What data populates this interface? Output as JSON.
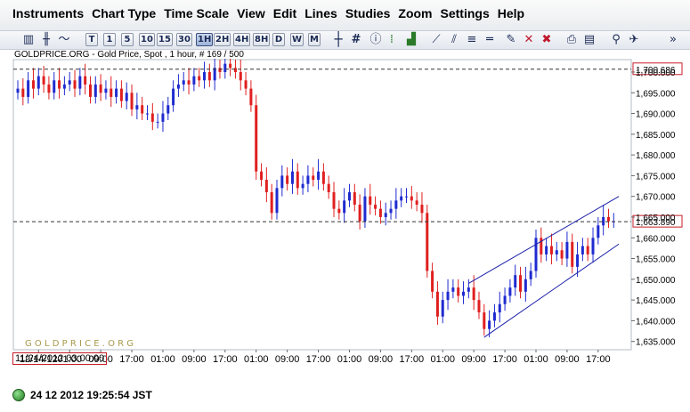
{
  "menu": [
    "Instruments",
    "Chart Type",
    "Time Scale",
    "View",
    "Edit",
    "Lines",
    "Studies",
    "Zoom",
    "Settings",
    "Help"
  ],
  "toolbar": {
    "timeframes": [
      "T",
      "1",
      "5",
      "10",
      "15",
      "30",
      "1H",
      "2H",
      "4H",
      "8H",
      "D",
      "W",
      "M"
    ],
    "selected_timeframe": "1H"
  },
  "subtitle": "GOLDPRICE.ORG - Gold Price, Spot , 1 hour, # 169 / 500",
  "watermark": "G O L D P R I C E . O R G",
  "cursor_date": "11/24/2012 03:00:00",
  "status_time": "24 12 2012 19:25:54 JST",
  "colors": {
    "up": "#1f2bd0",
    "down": "#e01f1f",
    "channel": "#1a1fa8",
    "price_box": "#c81e28"
  },
  "chart_data": {
    "type": "candlestick",
    "title": "",
    "ylim": [
      1633,
      1703
    ],
    "y_ticks": [
      "1,635.000",
      "1,640.000",
      "1,645.000",
      "1,650.000",
      "1,655.000",
      "1,660.000",
      "1,665.000",
      "1,670.000",
      "1,675.000",
      "1,680.000",
      "1,685.000",
      "1,690.000",
      "1,695.000",
      "1,700.000"
    ],
    "y_tick_values": [
      1635,
      1640,
      1645,
      1650,
      1655,
      1660,
      1665,
      1670,
      1675,
      1680,
      1685,
      1690,
      1695,
      1700
    ],
    "x_labels": [
      {
        "i": 4,
        "time": "12/14/12",
        "day": ""
      },
      {
        "i": 10,
        "time": "01:00",
        "day": "15"
      },
      {
        "i": 16,
        "time": "09:00",
        "day": "17"
      },
      {
        "i": 22,
        "time": "17:00",
        "day": ""
      },
      {
        "i": 28,
        "time": "01:00",
        "day": "18"
      },
      {
        "i": 34,
        "time": "09:00",
        "day": ""
      },
      {
        "i": 40,
        "time": "17:00",
        "day": ""
      },
      {
        "i": 46,
        "time": "01:00",
        "day": "19"
      },
      {
        "i": 52,
        "time": "09:00",
        "day": ""
      },
      {
        "i": 58,
        "time": "17:00",
        "day": ""
      },
      {
        "i": 64,
        "time": "01:00",
        "day": "20"
      },
      {
        "i": 70,
        "time": "09:00",
        "day": ""
      },
      {
        "i": 76,
        "time": "17:00",
        "day": ""
      },
      {
        "i": 82,
        "time": "01:00",
        "day": "21"
      },
      {
        "i": 88,
        "time": "09:00",
        "day": ""
      },
      {
        "i": 94,
        "time": "17:00",
        "day": ""
      },
      {
        "i": 100,
        "time": "01:00",
        "day": "22"
      },
      {
        "i": 106,
        "time": "09:00",
        "day": "24"
      },
      {
        "i": 112,
        "time": "17:00",
        "day": ""
      }
    ],
    "hlines": [
      {
        "value": 1700.686,
        "label": "1,700.686"
      },
      {
        "value": 1663.89,
        "label": "1,663.890"
      }
    ],
    "channel": [
      {
        "i1": 87,
        "v1": 1649.0,
        "i2": 116,
        "v2": 1670.0
      },
      {
        "i1": 90,
        "v1": 1636.0,
        "i2": 116,
        "v2": 1658.5
      }
    ],
    "closes": [
      1696,
      1694,
      1698,
      1696,
      1699,
      1697,
      1695,
      1698,
      1696,
      1697,
      1698,
      1696,
      1699,
      1697,
      1694,
      1697,
      1695,
      1696,
      1694,
      1696,
      1693,
      1695,
      1691,
      1692,
      1690,
      1690,
      1688,
      1688,
      1690,
      1692,
      1696,
      1697,
      1698,
      1697,
      1699,
      1698,
      1700,
      1698,
      1701,
      1700,
      1702,
      1701,
      1700,
      1698,
      1696,
      1692,
      1676,
      1674,
      1671,
      1666,
      1672,
      1675,
      1673,
      1676,
      1672,
      1673,
      1675,
      1674,
      1676,
      1673,
      1671,
      1667,
      1666,
      1669,
      1671,
      1668,
      1664,
      1670,
      1668,
      1667,
      1665,
      1666,
      1667,
      1669,
      1670,
      1670,
      1669,
      1668,
      1666,
      1652,
      1647,
      1641,
      1645,
      1647,
      1648,
      1646,
      1647,
      1648,
      1645,
      1642,
      1638,
      1640,
      1642,
      1644,
      1646,
      1648,
      1651,
      1647,
      1650,
      1652,
      1660,
      1656,
      1658,
      1656,
      1657,
      1655,
      1659,
      1653,
      1656,
      1658,
      1656,
      1660,
      1663,
      1665,
      1664,
      1664
    ],
    "wicks": [
      2,
      2.5,
      2,
      3,
      2,
      2.5,
      2,
      2,
      3,
      2,
      2,
      2.5,
      2,
      3,
      2,
      2,
      2.5,
      2,
      3,
      2,
      2,
      2.5,
      2,
      3,
      2,
      2,
      2.5,
      2,
      3,
      2,
      2,
      2.5,
      2,
      3,
      2,
      2,
      2.5,
      2,
      3,
      2,
      2,
      2.5,
      2,
      3,
      2,
      2,
      2.5,
      2,
      3,
      2,
      2,
      2.5,
      2,
      3,
      2,
      2,
      2.5,
      2,
      3,
      2,
      2,
      2.5,
      2,
      3,
      2,
      2,
      2.5,
      2,
      3,
      2,
      2,
      2.5,
      2,
      3,
      2,
      2,
      2.5,
      2,
      3,
      2,
      2,
      2.5,
      2,
      3,
      2,
      2,
      2.5,
      2,
      3,
      2,
      2,
      2.5,
      2,
      3,
      2,
      2,
      2.5,
      2,
      3,
      2,
      2,
      2.5,
      2,
      3,
      2,
      2,
      2.5,
      2,
      3,
      2,
      2,
      2.5,
      2,
      3,
      2,
      2,
      2.5
    ]
  }
}
